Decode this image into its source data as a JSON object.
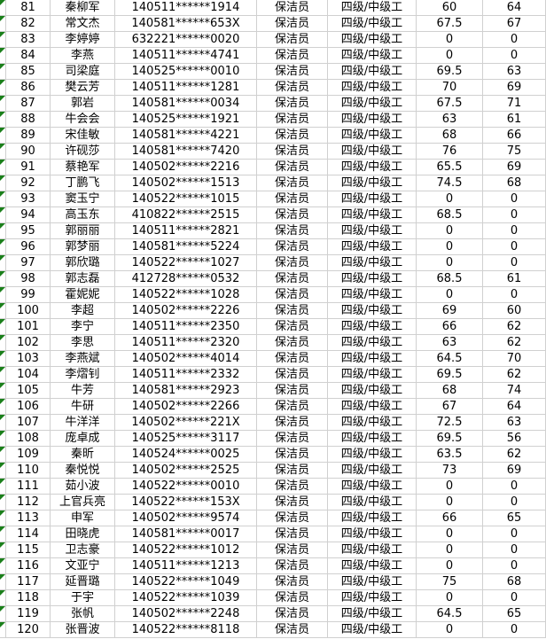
{
  "app": {
    "view": "spreadsheet-grid",
    "visible_row_range": "81-120"
  },
  "colors": {
    "background": "#ffffff",
    "gridline": "#d0d0d0",
    "text": "#000000",
    "error_triangle_green": "#1a7f1a"
  },
  "icons": {
    "error_triangle": "green-top-left-corner-triangle"
  },
  "table": {
    "columns": [
      "error_flag",
      "row_number",
      "name",
      "id_number",
      "position",
      "grade",
      "score1",
      "score2"
    ],
    "rows": [
      {
        "num": "81",
        "name": "秦柳军",
        "id": "140511******1914",
        "job": "保洁员",
        "level": "四级/中级工",
        "s1": "60",
        "s2": "64"
      },
      {
        "num": "82",
        "name": "常文杰",
        "id": "140581******653X",
        "job": "保洁员",
        "level": "四级/中级工",
        "s1": "67.5",
        "s2": "67"
      },
      {
        "num": "83",
        "name": "李婷婷",
        "id": "632221******0020",
        "job": "保洁员",
        "level": "四级/中级工",
        "s1": "0",
        "s2": "0"
      },
      {
        "num": "84",
        "name": "李燕",
        "id": "140511******4741",
        "job": "保洁员",
        "level": "四级/中级工",
        "s1": "0",
        "s2": "0"
      },
      {
        "num": "85",
        "name": "司梁庭",
        "id": "140525******0010",
        "job": "保洁员",
        "level": "四级/中级工",
        "s1": "69.5",
        "s2": "63"
      },
      {
        "num": "86",
        "name": "樊云芳",
        "id": "140511******1281",
        "job": "保洁员",
        "level": "四级/中级工",
        "s1": "70",
        "s2": "69"
      },
      {
        "num": "87",
        "name": "郭岩",
        "id": "140581******0034",
        "job": "保洁员",
        "level": "四级/中级工",
        "s1": "67.5",
        "s2": "71"
      },
      {
        "num": "88",
        "name": "牛会会",
        "id": "140525******1921",
        "job": "保洁员",
        "level": "四级/中级工",
        "s1": "63",
        "s2": "61"
      },
      {
        "num": "89",
        "name": "宋佳敏",
        "id": "140581******4221",
        "job": "保洁员",
        "level": "四级/中级工",
        "s1": "68",
        "s2": "66"
      },
      {
        "num": "90",
        "name": "许砚莎",
        "id": "140581******7420",
        "job": "保洁员",
        "level": "四级/中级工",
        "s1": "76",
        "s2": "75"
      },
      {
        "num": "91",
        "name": "蔡艳军",
        "id": "140502******2216",
        "job": "保洁员",
        "level": "四级/中级工",
        "s1": "65.5",
        "s2": "69"
      },
      {
        "num": "92",
        "name": "丁鹏飞",
        "id": "140502******1513",
        "job": "保洁员",
        "level": "四级/中级工",
        "s1": "74.5",
        "s2": "68"
      },
      {
        "num": "93",
        "name": "窦玉宁",
        "id": "140522******1015",
        "job": "保洁员",
        "level": "四级/中级工",
        "s1": "0",
        "s2": "0"
      },
      {
        "num": "94",
        "name": "高玉东",
        "id": "410822******2515",
        "job": "保洁员",
        "level": "四级/中级工",
        "s1": "68.5",
        "s2": "0"
      },
      {
        "num": "95",
        "name": "郭丽丽",
        "id": "140511******2821",
        "job": "保洁员",
        "level": "四级/中级工",
        "s1": "0",
        "s2": "0"
      },
      {
        "num": "96",
        "name": "郭梦丽",
        "id": "140581******5224",
        "job": "保洁员",
        "level": "四级/中级工",
        "s1": "0",
        "s2": "0"
      },
      {
        "num": "97",
        "name": "郭欣璐",
        "id": "140522******1027",
        "job": "保洁员",
        "level": "四级/中级工",
        "s1": "0",
        "s2": "0"
      },
      {
        "num": "98",
        "name": "郭志磊",
        "id": "412728******0532",
        "job": "保洁员",
        "level": "四级/中级工",
        "s1": "68.5",
        "s2": "61"
      },
      {
        "num": "99",
        "name": "霍妮妮",
        "id": "140522******1028",
        "job": "保洁员",
        "level": "四级/中级工",
        "s1": "0",
        "s2": "0"
      },
      {
        "num": "100",
        "name": "李超",
        "id": "140502******2226",
        "job": "保洁员",
        "level": "四级/中级工",
        "s1": "69",
        "s2": "60"
      },
      {
        "num": "101",
        "name": "李宁",
        "id": "140511******2350",
        "job": "保洁员",
        "level": "四级/中级工",
        "s1": "66",
        "s2": "62"
      },
      {
        "num": "102",
        "name": "李思",
        "id": "140511******2320",
        "job": "保洁员",
        "level": "四级/中级工",
        "s1": "63",
        "s2": "62"
      },
      {
        "num": "103",
        "name": "李燕斌",
        "id": "140502******4014",
        "job": "保洁员",
        "level": "四级/中级工",
        "s1": "64.5",
        "s2": "70"
      },
      {
        "num": "104",
        "name": "李熠钊",
        "id": "140511******2332",
        "job": "保洁员",
        "level": "四级/中级工",
        "s1": "69.5",
        "s2": "62"
      },
      {
        "num": "105",
        "name": "牛芳",
        "id": "140581******2923",
        "job": "保洁员",
        "level": "四级/中级工",
        "s1": "68",
        "s2": "74"
      },
      {
        "num": "106",
        "name": "牛研",
        "id": "140502******2266",
        "job": "保洁员",
        "level": "四级/中级工",
        "s1": "67",
        "s2": "64"
      },
      {
        "num": "107",
        "name": "牛洋洋",
        "id": "140502******221X",
        "job": "保洁员",
        "level": "四级/中级工",
        "s1": "72.5",
        "s2": "63"
      },
      {
        "num": "108",
        "name": "庞卓成",
        "id": "140525******3117",
        "job": "保洁员",
        "level": "四级/中级工",
        "s1": "69.5",
        "s2": "56"
      },
      {
        "num": "109",
        "name": "秦昕",
        "id": "140524******0025",
        "job": "保洁员",
        "level": "四级/中级工",
        "s1": "63.5",
        "s2": "62"
      },
      {
        "num": "110",
        "name": "秦悦悦",
        "id": "140502******2525",
        "job": "保洁员",
        "level": "四级/中级工",
        "s1": "73",
        "s2": "69"
      },
      {
        "num": "111",
        "name": "茹小波",
        "id": "140522******0010",
        "job": "保洁员",
        "level": "四级/中级工",
        "s1": "0",
        "s2": "0"
      },
      {
        "num": "112",
        "name": "上官兵亮",
        "id": "140522******153X",
        "job": "保洁员",
        "level": "四级/中级工",
        "s1": "0",
        "s2": "0"
      },
      {
        "num": "113",
        "name": "申军",
        "id": "140502******9574",
        "job": "保洁员",
        "level": "四级/中级工",
        "s1": "66",
        "s2": "65"
      },
      {
        "num": "114",
        "name": "田晓虎",
        "id": "140581******0017",
        "job": "保洁员",
        "level": "四级/中级工",
        "s1": "0",
        "s2": "0"
      },
      {
        "num": "115",
        "name": "卫志豪",
        "id": "140522******1012",
        "job": "保洁员",
        "level": "四级/中级工",
        "s1": "0",
        "s2": "0"
      },
      {
        "num": "116",
        "name": "文亚宁",
        "id": "140511******1213",
        "job": "保洁员",
        "level": "四级/中级工",
        "s1": "0",
        "s2": "0"
      },
      {
        "num": "117",
        "name": "延晋璐",
        "id": "140522******1049",
        "job": "保洁员",
        "level": "四级/中级工",
        "s1": "75",
        "s2": "68"
      },
      {
        "num": "118",
        "name": "于宇",
        "id": "140522******1039",
        "job": "保洁员",
        "level": "四级/中级工",
        "s1": "0",
        "s2": "0"
      },
      {
        "num": "119",
        "name": "张帆",
        "id": "140502******2248",
        "job": "保洁员",
        "level": "四级/中级工",
        "s1": "64.5",
        "s2": "65"
      },
      {
        "num": "120",
        "name": "张晋波",
        "id": "140522******8118",
        "job": "保洁员",
        "level": "四级/中级工",
        "s1": "0",
        "s2": "0"
      }
    ]
  }
}
